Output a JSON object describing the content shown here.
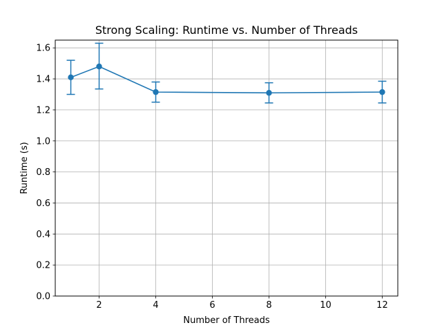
{
  "chart_data": {
    "type": "line",
    "title": "Strong Scaling: Runtime vs. Number of Threads",
    "xlabel": "Number of Threads",
    "ylabel": "Runtime (s)",
    "xlim": [
      0.45,
      12.55
    ],
    "ylim": [
      0.0,
      1.65
    ],
    "xticks": [
      2,
      4,
      6,
      8,
      10,
      12
    ],
    "yticks": [
      0.0,
      0.2,
      0.4,
      0.6,
      0.8,
      1.0,
      1.2,
      1.4,
      1.6
    ],
    "grid": true,
    "series": [
      {
        "x": [
          1,
          2,
          4,
          8,
          12
        ],
        "y": [
          1.41,
          1.48,
          1.315,
          1.31,
          1.315
        ],
        "yerr_low": [
          1.3,
          1.335,
          1.25,
          1.245,
          1.245
        ],
        "yerr_high": [
          1.52,
          1.63,
          1.38,
          1.375,
          1.385
        ],
        "color": "#1f77b4"
      }
    ]
  }
}
